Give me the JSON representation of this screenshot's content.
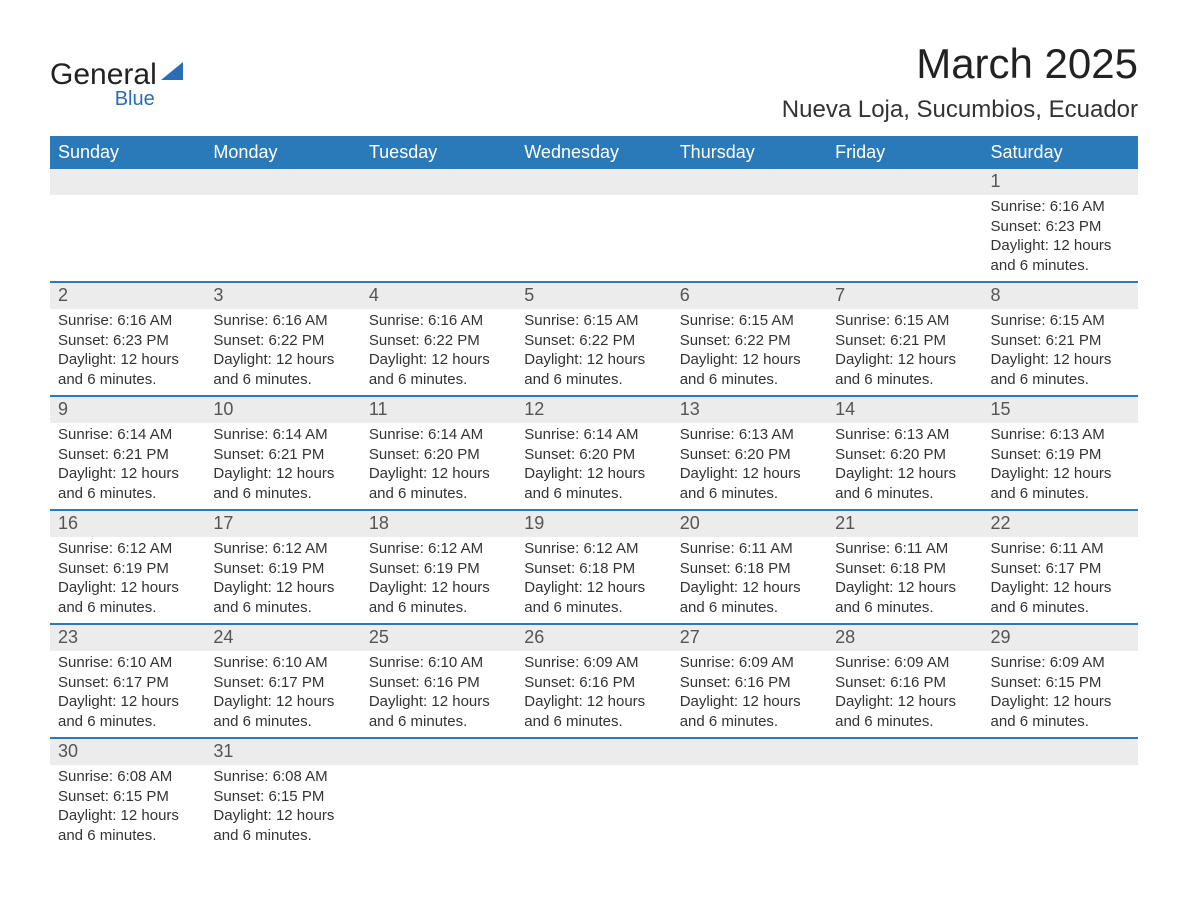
{
  "logo": {
    "main": "General",
    "sub": "Blue",
    "shape_color": "#2a6db3",
    "text_color": "#222222"
  },
  "title": "March 2025",
  "location": "Nueva Loja, Sucumbios, Ecuador",
  "colors": {
    "header_bg": "#2a7ab9",
    "header_text": "#ffffff",
    "daynum_bg": "#ececec",
    "daynum_text": "#555555",
    "body_text": "#333333",
    "row_border": "#2a7ab9",
    "page_bg": "#ffffff"
  },
  "typography": {
    "title_fontsize": 42,
    "location_fontsize": 24,
    "weekday_fontsize": 18,
    "daynum_fontsize": 18,
    "detail_fontsize": 15,
    "font_family": "Arial"
  },
  "weekdays": [
    "Sunday",
    "Monday",
    "Tuesday",
    "Wednesday",
    "Thursday",
    "Friday",
    "Saturday"
  ],
  "labels": {
    "sunrise": "Sunrise:",
    "sunset": "Sunset:",
    "daylight": "Daylight:"
  },
  "weeks": [
    [
      null,
      null,
      null,
      null,
      null,
      null,
      {
        "d": "1",
        "sr": "6:16 AM",
        "ss": "6:23 PM",
        "dl": "12 hours and 6 minutes."
      }
    ],
    [
      {
        "d": "2",
        "sr": "6:16 AM",
        "ss": "6:23 PM",
        "dl": "12 hours and 6 minutes."
      },
      {
        "d": "3",
        "sr": "6:16 AM",
        "ss": "6:22 PM",
        "dl": "12 hours and 6 minutes."
      },
      {
        "d": "4",
        "sr": "6:16 AM",
        "ss": "6:22 PM",
        "dl": "12 hours and 6 minutes."
      },
      {
        "d": "5",
        "sr": "6:15 AM",
        "ss": "6:22 PM",
        "dl": "12 hours and 6 minutes."
      },
      {
        "d": "6",
        "sr": "6:15 AM",
        "ss": "6:22 PM",
        "dl": "12 hours and 6 minutes."
      },
      {
        "d": "7",
        "sr": "6:15 AM",
        "ss": "6:21 PM",
        "dl": "12 hours and 6 minutes."
      },
      {
        "d": "8",
        "sr": "6:15 AM",
        "ss": "6:21 PM",
        "dl": "12 hours and 6 minutes."
      }
    ],
    [
      {
        "d": "9",
        "sr": "6:14 AM",
        "ss": "6:21 PM",
        "dl": "12 hours and 6 minutes."
      },
      {
        "d": "10",
        "sr": "6:14 AM",
        "ss": "6:21 PM",
        "dl": "12 hours and 6 minutes."
      },
      {
        "d": "11",
        "sr": "6:14 AM",
        "ss": "6:20 PM",
        "dl": "12 hours and 6 minutes."
      },
      {
        "d": "12",
        "sr": "6:14 AM",
        "ss": "6:20 PM",
        "dl": "12 hours and 6 minutes."
      },
      {
        "d": "13",
        "sr": "6:13 AM",
        "ss": "6:20 PM",
        "dl": "12 hours and 6 minutes."
      },
      {
        "d": "14",
        "sr": "6:13 AM",
        "ss": "6:20 PM",
        "dl": "12 hours and 6 minutes."
      },
      {
        "d": "15",
        "sr": "6:13 AM",
        "ss": "6:19 PM",
        "dl": "12 hours and 6 minutes."
      }
    ],
    [
      {
        "d": "16",
        "sr": "6:12 AM",
        "ss": "6:19 PM",
        "dl": "12 hours and 6 minutes."
      },
      {
        "d": "17",
        "sr": "6:12 AM",
        "ss": "6:19 PM",
        "dl": "12 hours and 6 minutes."
      },
      {
        "d": "18",
        "sr": "6:12 AM",
        "ss": "6:19 PM",
        "dl": "12 hours and 6 minutes."
      },
      {
        "d": "19",
        "sr": "6:12 AM",
        "ss": "6:18 PM",
        "dl": "12 hours and 6 minutes."
      },
      {
        "d": "20",
        "sr": "6:11 AM",
        "ss": "6:18 PM",
        "dl": "12 hours and 6 minutes."
      },
      {
        "d": "21",
        "sr": "6:11 AM",
        "ss": "6:18 PM",
        "dl": "12 hours and 6 minutes."
      },
      {
        "d": "22",
        "sr": "6:11 AM",
        "ss": "6:17 PM",
        "dl": "12 hours and 6 minutes."
      }
    ],
    [
      {
        "d": "23",
        "sr": "6:10 AM",
        "ss": "6:17 PM",
        "dl": "12 hours and 6 minutes."
      },
      {
        "d": "24",
        "sr": "6:10 AM",
        "ss": "6:17 PM",
        "dl": "12 hours and 6 minutes."
      },
      {
        "d": "25",
        "sr": "6:10 AM",
        "ss": "6:16 PM",
        "dl": "12 hours and 6 minutes."
      },
      {
        "d": "26",
        "sr": "6:09 AM",
        "ss": "6:16 PM",
        "dl": "12 hours and 6 minutes."
      },
      {
        "d": "27",
        "sr": "6:09 AM",
        "ss": "6:16 PM",
        "dl": "12 hours and 6 minutes."
      },
      {
        "d": "28",
        "sr": "6:09 AM",
        "ss": "6:16 PM",
        "dl": "12 hours and 6 minutes."
      },
      {
        "d": "29",
        "sr": "6:09 AM",
        "ss": "6:15 PM",
        "dl": "12 hours and 6 minutes."
      }
    ],
    [
      {
        "d": "30",
        "sr": "6:08 AM",
        "ss": "6:15 PM",
        "dl": "12 hours and 6 minutes."
      },
      {
        "d": "31",
        "sr": "6:08 AM",
        "ss": "6:15 PM",
        "dl": "12 hours and 6 minutes."
      },
      null,
      null,
      null,
      null,
      null
    ]
  ]
}
